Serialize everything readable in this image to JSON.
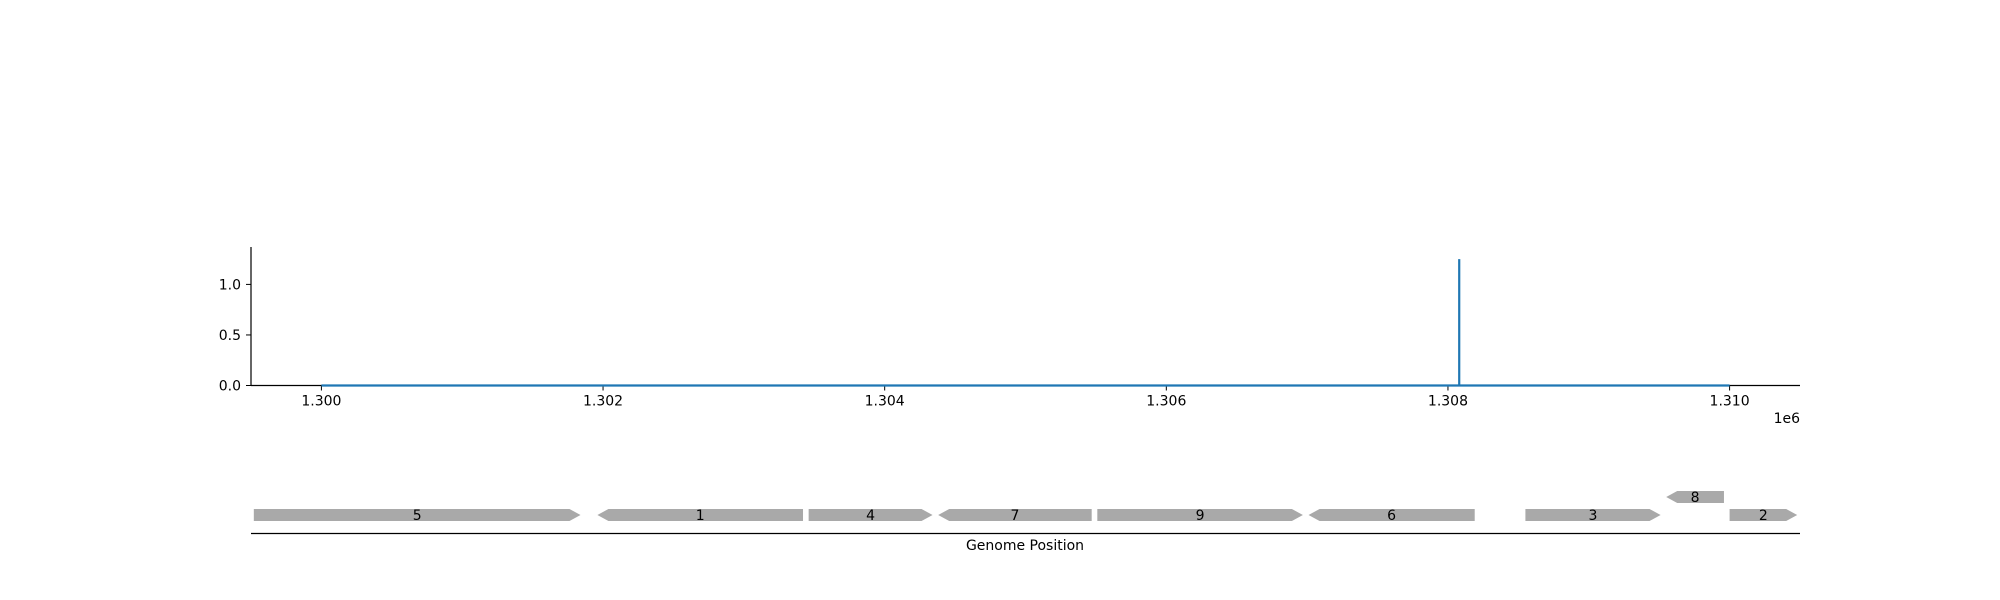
{
  "chart_data": [
    {
      "type": "line",
      "series": [
        {
          "x": [
            1300000,
            1308080,
            1308080,
            1308080,
            1310000
          ],
          "y": [
            0,
            0,
            1.25,
            0,
            0
          ]
        }
      ],
      "xlim": [
        1299500,
        1310500
      ],
      "ylim": [
        0,
        1.37
      ],
      "xticks": [
        1300000,
        1302000,
        1304000,
        1306000,
        1308000,
        1310000
      ],
      "xtick_labels": [
        "1.300",
        "1.302",
        "1.304",
        "1.306",
        "1.308",
        "1.310"
      ],
      "yticks": [
        0,
        0.5,
        1.0
      ],
      "ytick_labels": [
        "0.0",
        "0.5",
        "1.0"
      ],
      "x_offset_label": "1e6",
      "line_color": "#1f77b4",
      "grid": false
    },
    {
      "type": "gene-track",
      "xlabel": "Genome Position",
      "xlim": [
        1299500,
        1310500
      ],
      "feature_color": "#a9a9a9",
      "features": [
        {
          "label": "5",
          "start": 1299520,
          "end": 1301840,
          "strand": 1,
          "row": 0
        },
        {
          "label": "1",
          "start": 1301960,
          "end": 1303420,
          "strand": -1,
          "row": 0
        },
        {
          "label": "4",
          "start": 1303460,
          "end": 1304340,
          "strand": 1,
          "row": 0
        },
        {
          "label": "7",
          "start": 1304380,
          "end": 1305470,
          "strand": -1,
          "row": 0
        },
        {
          "label": "9",
          "start": 1305510,
          "end": 1306970,
          "strand": 1,
          "row": 0
        },
        {
          "label": "6",
          "start": 1307010,
          "end": 1308190,
          "strand": -1,
          "row": 0
        },
        {
          "label": "3",
          "start": 1308550,
          "end": 1309510,
          "strand": 1,
          "row": 0
        },
        {
          "label": "8",
          "start": 1309550,
          "end": 1309960,
          "strand": -1,
          "row": 1
        },
        {
          "label": "2",
          "start": 1310000,
          "end": 1310480,
          "strand": 1,
          "row": 0
        }
      ]
    }
  ]
}
